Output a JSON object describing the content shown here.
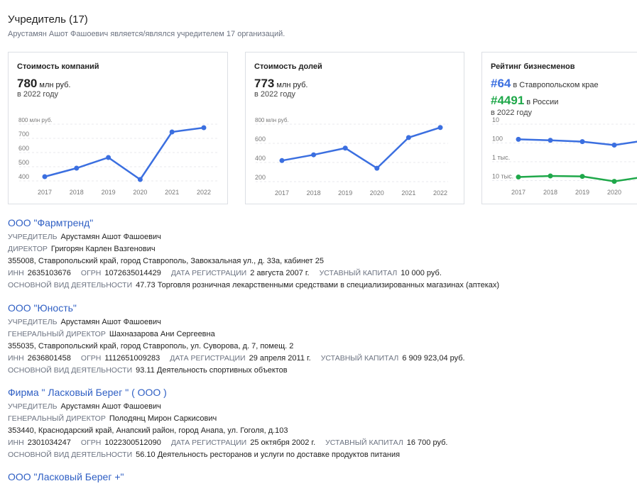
{
  "header": {
    "title": "Учредитель (17)",
    "subtitle": "Арустамян Ашот Фашоевич является/являлся учредителем 17 организаций."
  },
  "cards": {
    "company": {
      "title": "Стоимость компаний",
      "value": "780",
      "unit": "млн руб.",
      "year": "в 2022 году"
    },
    "shares": {
      "title": "Стоимость долей",
      "value": "773",
      "unit": "млн руб.",
      "year": "в 2022 году"
    },
    "rating": {
      "title": "Рейтинг бизнесменов",
      "rank1": "#64",
      "rank1_text": "в Ставропольском крае",
      "rank2": "#4491",
      "rank2_text": "в России",
      "year": "в 2022 году"
    }
  },
  "colors": {
    "line_blue": "#3b6fe0",
    "line_green": "#1fa84a",
    "link": "#2f5fc4"
  },
  "chart_data": [
    {
      "type": "line",
      "x": [
        "2017",
        "2018",
        "2019",
        "2020",
        "2021",
        "2022"
      ],
      "series": [
        {
          "values": [
            430,
            490,
            565,
            410,
            745,
            775
          ]
        }
      ],
      "ylim": [
        400,
        800
      ],
      "yticks": [
        "800 млн руб.",
        "700",
        "600",
        "500",
        "400"
      ]
    },
    {
      "type": "line",
      "x": [
        "2017",
        "2018",
        "2019",
        "2020",
        "2021",
        "2022"
      ],
      "series": [
        {
          "values": [
            420,
            480,
            550,
            340,
            660,
            765
          ]
        }
      ],
      "ylim": [
        200,
        800
      ],
      "yticks": [
        "800 млн руб.",
        "600",
        "400",
        "200"
      ]
    },
    {
      "type": "line",
      "x": [
        "2017",
        "2018",
        "2019",
        "2020"
      ],
      "series": [
        {
          "values": [
            64,
            72,
            85,
            130
          ]
        },
        {
          "values": [
            6500,
            5700,
            6000,
            11000
          ]
        }
      ],
      "scale": "log",
      "yticks": [
        "10",
        "100",
        "1 тыс.",
        "10 тыс."
      ]
    }
  ],
  "orgs": [
    {
      "name": "ООО \"Фармтренд\"",
      "founder_label": "УЧРЕДИТЕЛЬ",
      "founder": "Арустамян Ашот Фашоевич",
      "director_label": "ДИРЕКТОР",
      "director": "Григорян Карлен Вазгенович",
      "address": "355008, Ставропольский край, город Ставрополь, Завокзальная ул., д. 33а, кабинет 25",
      "inn_label": "ИНН",
      "inn": "2635103676",
      "ogrn_label": "ОГРН",
      "ogrn": "1072635014429",
      "reg_label": "ДАТА РЕГИСТРАЦИИ",
      "reg": "2 августа 2007 г.",
      "cap_label": "УСТАВНЫЙ КАПИТАЛ",
      "cap": "10 000 руб.",
      "act_label": "ОСНОВНОЙ ВИД ДЕЯТЕЛЬНОСТИ",
      "act": "47.73 Торговля розничная лекарственными средствами в специализированных магазинах (аптеках)"
    },
    {
      "name": "ООО \"Юность\"",
      "founder_label": "УЧРЕДИТЕЛЬ",
      "founder": "Арустамян Ашот Фашоевич",
      "director_label": "ГЕНЕРАЛЬНЫЙ ДИРЕКТОР",
      "director": "Шахназарова Ани Сергеевна",
      "address": "355035, Ставропольский край, город Ставрополь, ул. Суворова, д. 7, помещ. 2",
      "inn_label": "ИНН",
      "inn": "2636801458",
      "ogrn_label": "ОГРН",
      "ogrn": "1112651009283",
      "reg_label": "ДАТА РЕГИСТРАЦИИ",
      "reg": "29 апреля 2011 г.",
      "cap_label": "УСТАВНЫЙ КАПИТАЛ",
      "cap": "6 909 923,04 руб.",
      "act_label": "ОСНОВНОЙ ВИД ДЕЯТЕЛЬНОСТИ",
      "act": "93.11 Деятельность спортивных объектов"
    },
    {
      "name": "Фирма \" Ласковый Берег \" ( ООО )",
      "founder_label": "УЧРЕДИТЕЛЬ",
      "founder": "Арустамян Ашот Фашоевич",
      "director_label": "ГЕНЕРАЛЬНЫЙ ДИРЕКТОР",
      "director": "Полодянц Мирон Саркисович",
      "address": "353440, Краснодарский край, Анапский район, город Анапа, ул. Гоголя, д.103",
      "inn_label": "ИНН",
      "inn": "2301034247",
      "ogrn_label": "ОГРН",
      "ogrn": "1022300512090",
      "reg_label": "ДАТА РЕГИСТРАЦИИ",
      "reg": "25 октября 2002 г.",
      "cap_label": "УСТАВНЫЙ КАПИТАЛ",
      "cap": "16 700 руб.",
      "act_label": "ОСНОВНОЙ ВИД ДЕЯТЕЛЬНОСТИ",
      "act": "56.10 Деятельность ресторанов и услуги по доставке продуктов питания"
    },
    {
      "name": "ООО \"Ласковый Берег +\""
    }
  ]
}
